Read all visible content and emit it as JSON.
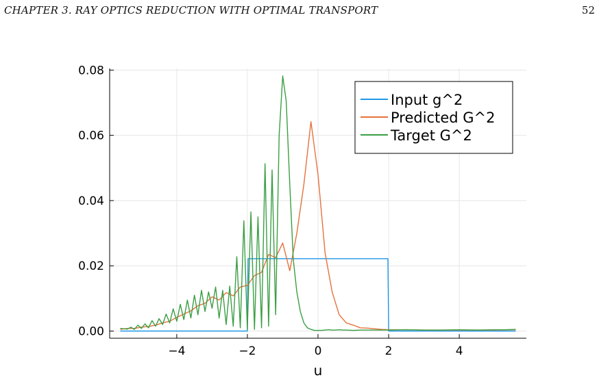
{
  "header": {
    "chapter": "CHAPTER 3.  RAY OPTICS REDUCTION WITH OPTIMAL TRANSPORT",
    "page": "52"
  },
  "chart_data": {
    "type": "line",
    "xlabel": "u",
    "ylabel": "",
    "xlim": [
      -5.9,
      5.9
    ],
    "ylim": [
      -0.0022,
      0.0805
    ],
    "xticks": [
      -4,
      -2,
      0,
      2,
      4
    ],
    "xtick_labels": [
      "−4",
      "−2",
      "0",
      "2",
      "4"
    ],
    "yticks": [
      0.0,
      0.02,
      0.04,
      0.06,
      0.08
    ],
    "ytick_labels": [
      "0.00",
      "0.02",
      "0.04",
      "0.06",
      "0.08"
    ],
    "grid": true,
    "legend_position": "top-right",
    "series": [
      {
        "name": "Input g^2",
        "color": "#1e96e6",
        "x": [
          -5.6,
          -2.0,
          -1.98,
          1.98,
          2.0,
          5.6
        ],
        "y": [
          0.0,
          0.0,
          0.0222,
          0.0222,
          0.0,
          0.0
        ]
      },
      {
        "name": "Predicted G^2",
        "color": "#e5713c",
        "x": [
          -5.6,
          -5.4,
          -5.2,
          -5.0,
          -4.8,
          -4.6,
          -4.4,
          -4.2,
          -4.0,
          -3.8,
          -3.6,
          -3.4,
          -3.2,
          -3.0,
          -2.8,
          -2.6,
          -2.4,
          -2.2,
          -2.0,
          -1.8,
          -1.6,
          -1.4,
          -1.2,
          -1.0,
          -0.8,
          -0.6,
          -0.4,
          -0.2,
          0.0,
          0.2,
          0.4,
          0.6,
          0.8,
          1.0,
          1.2,
          1.4,
          1.6,
          1.8,
          2.0,
          2.5,
          3.0,
          3.5,
          4.0,
          4.5,
          5.0,
          5.6
        ],
        "y": [
          0.0005,
          0.0008,
          0.0008,
          0.0012,
          0.0014,
          0.0018,
          0.0025,
          0.003,
          0.0042,
          0.0052,
          0.0062,
          0.0078,
          0.0085,
          0.0105,
          0.0095,
          0.0118,
          0.0108,
          0.0135,
          0.014,
          0.017,
          0.018,
          0.0235,
          0.0225,
          0.027,
          0.0185,
          0.03,
          0.045,
          0.0642,
          0.048,
          0.024,
          0.012,
          0.005,
          0.0025,
          0.0018,
          0.001,
          0.0009,
          0.0007,
          0.0005,
          0.0004,
          0.0004,
          0.0003,
          0.0003,
          0.0003,
          0.0003,
          0.0003,
          0.0004
        ]
      },
      {
        "name": "Target G^2",
        "color": "#3a9e43",
        "x": [
          -5.6,
          -5.4,
          -5.3,
          -5.2,
          -5.1,
          -5.0,
          -4.9,
          -4.8,
          -4.7,
          -4.6,
          -4.5,
          -4.4,
          -4.3,
          -4.2,
          -4.1,
          -4.0,
          -3.9,
          -3.8,
          -3.7,
          -3.6,
          -3.5,
          -3.4,
          -3.3,
          -3.2,
          -3.1,
          -3.0,
          -2.9,
          -2.8,
          -2.7,
          -2.6,
          -2.5,
          -2.4,
          -2.3,
          -2.2,
          -2.1,
          -2.0,
          -1.9,
          -1.8,
          -1.7,
          -1.6,
          -1.5,
          -1.4,
          -1.3,
          -1.2,
          -1.1,
          -1.0,
          -0.9,
          -0.8,
          -0.7,
          -0.6,
          -0.5,
          -0.4,
          -0.3,
          -0.2,
          -0.1,
          0.0,
          0.1,
          0.2,
          0.3,
          0.4,
          0.5,
          0.6,
          0.7,
          0.8,
          1.0,
          1.2,
          1.5,
          2.0,
          2.5,
          3.0,
          3.5,
          4.0,
          4.5,
          5.0,
          5.3,
          5.6
        ],
        "y": [
          0.0008,
          0.0006,
          0.0012,
          0.0005,
          0.0018,
          0.0008,
          0.0022,
          0.001,
          0.0032,
          0.0015,
          0.0038,
          0.002,
          0.0052,
          0.0025,
          0.0068,
          0.003,
          0.0082,
          0.0035,
          0.0095,
          0.004,
          0.011,
          0.005,
          0.0125,
          0.006,
          0.012,
          0.007,
          0.0135,
          0.004,
          0.0125,
          0.002,
          0.0138,
          0.0015,
          0.0228,
          0.001,
          0.0338,
          0.0005,
          0.0365,
          0.0005,
          0.035,
          0.001,
          0.0513,
          0.0015,
          0.0494,
          0.005,
          0.06,
          0.0782,
          0.0705,
          0.045,
          0.022,
          0.012,
          0.006,
          0.0025,
          0.001,
          0.0005,
          0.0002,
          0.0002,
          0.0002,
          0.0003,
          0.0004,
          0.0003,
          0.0003,
          0.0004,
          0.0003,
          0.0003,
          0.0002,
          0.0003,
          0.0003,
          0.0003,
          0.0004,
          0.0003,
          0.0003,
          0.0004,
          0.0003,
          0.0004,
          0.0004,
          0.0005
        ]
      }
    ]
  }
}
